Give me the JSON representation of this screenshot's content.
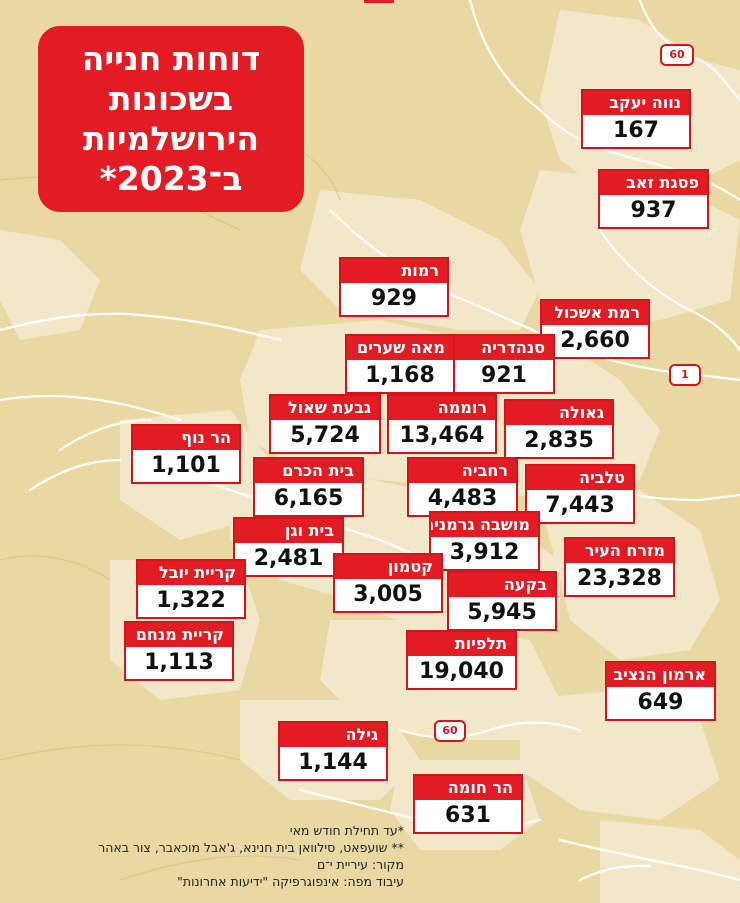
{
  "title": {
    "lines": [
      "דוחות חנייה",
      "בשכונות",
      "הירושלמיות",
      "ב־2023*"
    ]
  },
  "neighborhoods": [
    {
      "name": "נווה יעקב",
      "value": "167"
    },
    {
      "name": "פסגת זאב",
      "value": "937"
    },
    {
      "name": "רמות",
      "value": "929"
    },
    {
      "name": "רמת אשכול",
      "value": "2,660"
    },
    {
      "name": "מאה שערים",
      "value": "1,168"
    },
    {
      "name": "סנהדריה",
      "value": "921"
    },
    {
      "name": "גבעת שאול",
      "value": "5,724"
    },
    {
      "name": "רוממה",
      "value": "13,464"
    },
    {
      "name": "גאולה",
      "value": "2,835"
    },
    {
      "name": "הר נוף",
      "value": "1,101"
    },
    {
      "name": "בית הכרם",
      "value": "6,165"
    },
    {
      "name": "רחביה",
      "value": "4,483"
    },
    {
      "name": "טלביה",
      "value": "7,443"
    },
    {
      "name": "בית וגן",
      "value": "2,481"
    },
    {
      "name": "מושבה גרמנית",
      "value": "3,912"
    },
    {
      "name": "מזרח העיר",
      "value": "23,328"
    },
    {
      "name": "קריית יובל",
      "value": "1,322"
    },
    {
      "name": "קטמון",
      "value": "3,005"
    },
    {
      "name": "בקעה",
      "value": "5,945"
    },
    {
      "name": "קריית מנחם",
      "value": "1,113"
    },
    {
      "name": "תלפיות",
      "value": "19,040"
    },
    {
      "name": "ארמון הנציב",
      "value": "649"
    },
    {
      "name": "גילה",
      "value": "1,144"
    },
    {
      "name": "הר חומה",
      "value": "631"
    }
  ],
  "road_signs": [
    {
      "name": "route-60-north",
      "label": "60"
    },
    {
      "name": "route-1",
      "label": "1"
    },
    {
      "name": "route-60-south",
      "label": "60"
    }
  ],
  "notes": [
    "*עד תחילת חודש מאי",
    "** שועפאט, סילוואן בית חנינא, ג'אבל מוכאבר, צור באהר",
    "מקור: עיריית י־ם",
    "עיבוד מפה: אינפוגרפיקה \"ידיעות אחרונות\""
  ],
  "colors": {
    "background": "#ead8a2",
    "urban_area": "#f3e8c8",
    "roads": "#ffffff",
    "accent_red": "#e31b23"
  }
}
